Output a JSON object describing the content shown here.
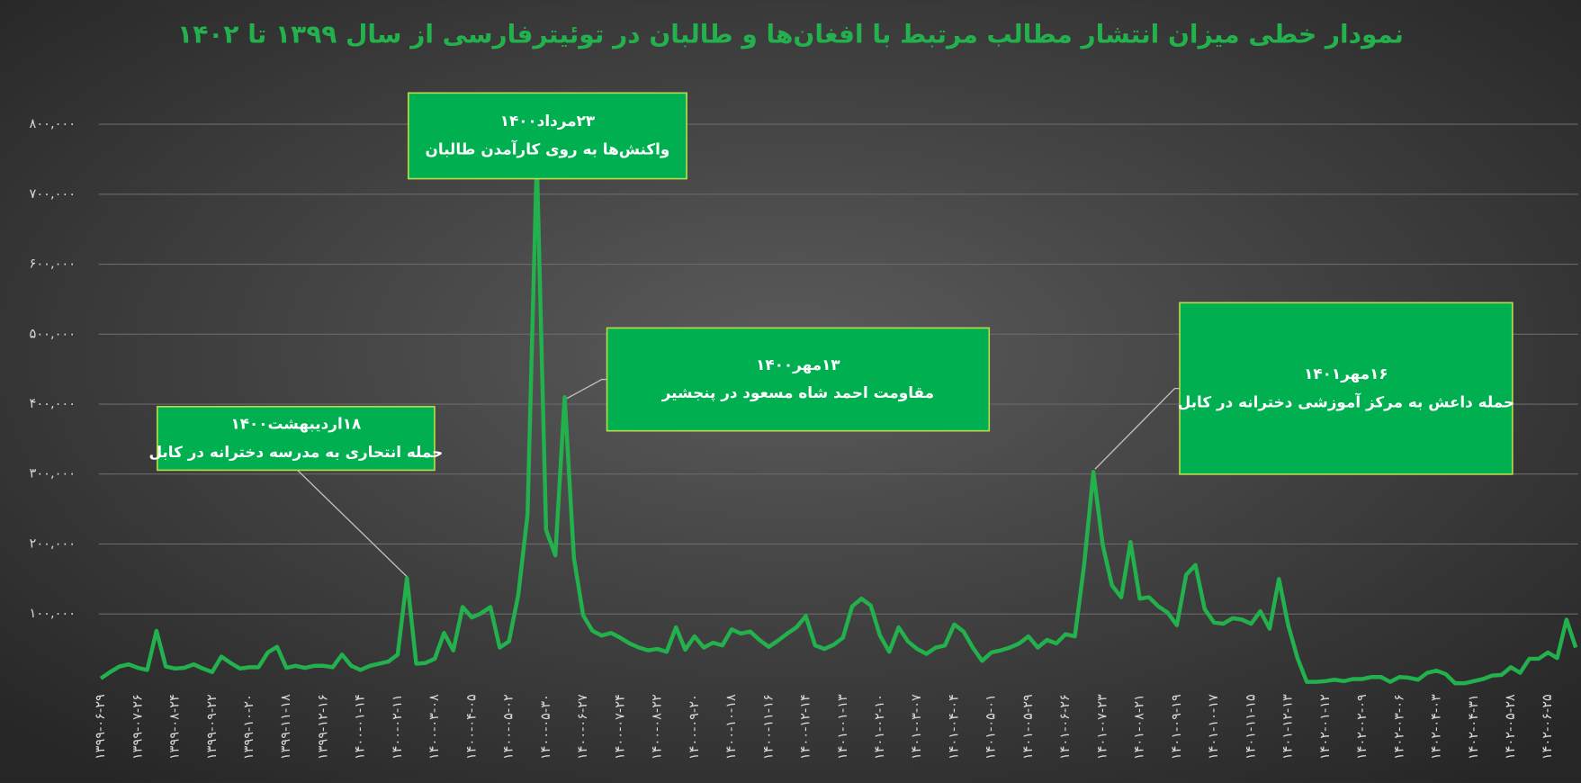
{
  "chart_data": {
    "type": "line",
    "title": "نمودار خطی میزان انتشار مطالب مرتبط با افغان‌ها و طالبان در توئیترفارسی از سال ۱۳۹۹ تا ۱۴۰۲",
    "color": "#22b14c",
    "grid": true,
    "ylim": [
      0,
      800000
    ],
    "yticks": [
      {
        "value": 100000,
        "label": "۱۰۰,۰۰۰"
      },
      {
        "value": 200000,
        "label": "۲۰۰,۰۰۰"
      },
      {
        "value": 300000,
        "label": "۳۰۰,۰۰۰"
      },
      {
        "value": 400000,
        "label": "۴۰۰,۰۰۰"
      },
      {
        "value": 500000,
        "label": "۵۰۰,۰۰۰"
      },
      {
        "value": 600000,
        "label": "۶۰۰,۰۰۰"
      },
      {
        "value": 700000,
        "label": "۷۰۰,۰۰۰"
      },
      {
        "value": 800000,
        "label": "۸۰۰,۰۰۰"
      }
    ],
    "categories": [
      "۱۳۹۹-۰۶-۲۹",
      null,
      null,
      null,
      "۱۳۹۹-۰۷-۲۶",
      null,
      null,
      null,
      "۱۳۹۹-۰۸-۲۴",
      null,
      null,
      null,
      "۱۳۹۹-۰۹-۲۲",
      null,
      null,
      null,
      "۱۳۹۹-۱۰-۲۰",
      null,
      null,
      null,
      "۱۳۹۹-۱۱-۱۸",
      null,
      null,
      null,
      "۱۳۹۹-۱۲-۱۶",
      null,
      null,
      null,
      "۱۴۰۰-۰۱-۱۴",
      null,
      null,
      null,
      "۱۴۰۰-۰۲-۱۱",
      null,
      null,
      null,
      "۱۴۰۰-۰۳-۰۸",
      null,
      null,
      null,
      "۱۴۰۰-۰۴-۰۵",
      null,
      null,
      null,
      "۱۴۰۰-۰۵-۰۲",
      null,
      null,
      null,
      "۱۴۰۰-۰۵-۳۰",
      null,
      null,
      null,
      "۱۴۰۰-۰۶-۲۷",
      null,
      null,
      null,
      "۱۴۰۰-۰۷-۲۴",
      null,
      null,
      null,
      "۱۴۰۰-۰۸-۲۲",
      null,
      null,
      null,
      "۱۴۰۰-۰۹-۲۰",
      null,
      null,
      null,
      "۱۴۰۰-۱۰-۱۸",
      null,
      null,
      null,
      "۱۴۰۰-۱۱-۱۶",
      null,
      null,
      null,
      "۱۴۰۰-۱۲-۱۴",
      null,
      null,
      null,
      "۱۴۰۱-۰۱-۱۳",
      null,
      null,
      null,
      "۱۴۰۱-۰۲-۱۰",
      null,
      null,
      null,
      "۱۴۰۱-۰۳-۰۷",
      null,
      null,
      null,
      "۱۴۰۱-۰۴-۰۴",
      null,
      null,
      null,
      "۱۴۰۱-۰۵-۰۱",
      null,
      null,
      null,
      "۱۴۰۱-۰۵-۲۹",
      null,
      null,
      null,
      "۱۴۰۱-۰۶-۲۶",
      null,
      null,
      null,
      "۱۴۰۱-۰۷-۲۳",
      null,
      null,
      null,
      "۱۴۰۱-۰۸-۲۱",
      null,
      null,
      null,
      "۱۴۰۱-۰۹-۱۹",
      null,
      null,
      null,
      "۱۴۰۱-۱۰-۱۷",
      null,
      null,
      null,
      "۱۴۰۱-۱۱-۱۵",
      null,
      null,
      null,
      "۱۴۰۱-۱۲-۱۳",
      null,
      null,
      null,
      "۱۴۰۲-۰۱-۱۲",
      null,
      null,
      null,
      "۱۴۰۲-۰۲-۰۹",
      null,
      null,
      null,
      "۱۴۰۲-۰۳-۰۶",
      null,
      null,
      null,
      "۱۴۰۲-۰۴-۰۳",
      null,
      null,
      null,
      "۱۴۰۲-۰۴-۳۱",
      null,
      null,
      null,
      "۱۴۰۲-۰۵-۲۸",
      null,
      null,
      null,
      "۱۴۰۲-۰۶-۲۵",
      null,
      null,
      null
    ],
    "values": [
      8000,
      17000,
      25000,
      28000,
      23000,
      20000,
      76000,
      25000,
      22000,
      23000,
      28000,
      22000,
      17000,
      39000,
      30000,
      22000,
      24000,
      24000,
      45000,
      53000,
      23000,
      26000,
      23000,
      26000,
      26000,
      24000,
      42000,
      26000,
      20000,
      26000,
      29000,
      32000,
      42000,
      151000,
      29000,
      30000,
      36000,
      73000,
      48000,
      110000,
      95000,
      101000,
      110000,
      52000,
      61000,
      127000,
      242000,
      750000,
      220000,
      184000,
      410000,
      180000,
      98000,
      76000,
      69000,
      73000,
      66000,
      58000,
      52000,
      48000,
      50000,
      46000,
      81000,
      49000,
      68000,
      52000,
      59000,
      55000,
      78000,
      72000,
      75000,
      63000,
      53000,
      62000,
      72000,
      81000,
      97000,
      55000,
      50000,
      56000,
      66000,
      111000,
      122000,
      112000,
      69000,
      46000,
      81000,
      61000,
      50000,
      43000,
      52000,
      55000,
      85000,
      75000,
      52000,
      33000,
      45000,
      48000,
      52000,
      58000,
      68000,
      52000,
      63000,
      58000,
      71000,
      68000,
      170000,
      303000,
      199000,
      141000,
      124000,
      203000,
      122000,
      124000,
      111000,
      102000,
      84000,
      156000,
      170000,
      107000,
      88000,
      86000,
      94000,
      92000,
      86000,
      104000,
      79000,
      150000,
      84000,
      37000,
      3000,
      3000,
      4000,
      6000,
      4000,
      7000,
      7000,
      10000,
      10000,
      3000,
      10000,
      9000,
      6000,
      16000,
      19000,
      14000,
      1000,
      1000,
      4000,
      7000,
      12000,
      13000,
      24000,
      16000,
      36000,
      36000,
      45000,
      37000,
      92000,
      52000
    ],
    "annotations": [
      {
        "date": "۱۸اردیبهشت۱۴۰۰",
        "text": "حمله انتحاری به مدرسه دخترانه در کابل"
      },
      {
        "date": "۲۳مرداد۱۴۰۰",
        "text": "واکنش‌ها به روی کارآمدن طالبان"
      },
      {
        "date": "۱۳مهر۱۴۰۰",
        "text": "مقاومت احمد شاه مسعود در پنجشیر"
      },
      {
        "date": "۱۶مهر۱۴۰۱",
        "text": "حمله داعش به مرکز آموزشی دخترانه در کابل"
      }
    ]
  }
}
